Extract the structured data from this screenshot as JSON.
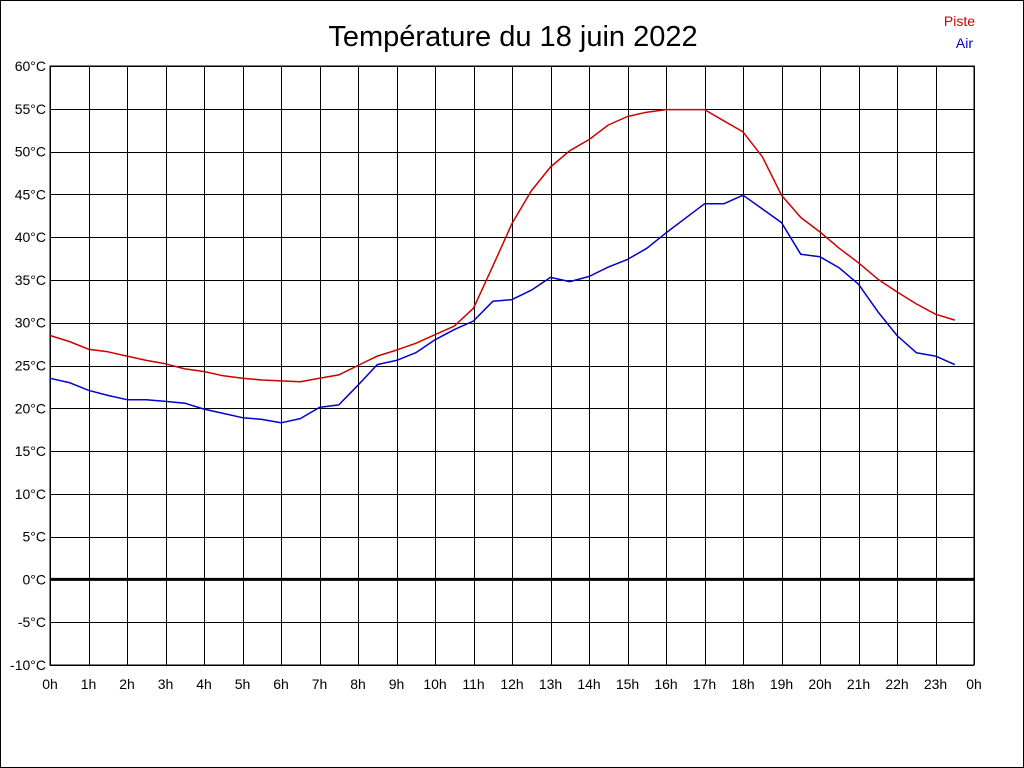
{
  "chart_data": {
    "type": "line",
    "title": "Température du 18 juin 2022",
    "ylim": [
      -10,
      60
    ],
    "y_ticks": [
      "60°C",
      "55°C",
      "50°C",
      "45°C",
      "40°C",
      "35°C",
      "30°C",
      "25°C",
      "20°C",
      "15°C",
      "10°C",
      "5°C",
      "0°C",
      "-5°C",
      "-10°C"
    ],
    "y_tick_values": [
      60,
      55,
      50,
      45,
      40,
      35,
      30,
      25,
      20,
      15,
      10,
      5,
      0,
      -5,
      -10
    ],
    "x_ticks": [
      "0h",
      "1h",
      "2h",
      "3h",
      "4h",
      "5h",
      "6h",
      "7h",
      "8h",
      "9h",
      "10h",
      "11h",
      "12h",
      "13h",
      "14h",
      "15h",
      "16h",
      "17h",
      "18h",
      "19h",
      "20h",
      "21h",
      "22h",
      "23h",
      "0h"
    ],
    "xlim": [
      0,
      24
    ],
    "grid": true,
    "legend_position": "top-right",
    "series": [
      {
        "name": "Piste",
        "color": "#cc0000",
        "x": [
          0,
          0.5,
          1,
          1.5,
          2,
          2.5,
          3,
          3.5,
          4,
          4.5,
          5,
          5.5,
          6,
          6.5,
          7,
          7.5,
          8,
          8.5,
          9,
          9.5,
          10,
          10.5,
          11,
          11.5,
          12,
          12.5,
          13,
          13.5,
          14,
          14.5,
          15,
          15.5,
          16,
          16.5,
          17,
          17.5,
          18,
          18.5,
          19,
          19.5,
          20,
          20.5,
          21,
          21.5,
          22,
          22.5,
          23,
          23.5
        ],
        "values": [
          28.5,
          27.8,
          26.9,
          26.6,
          26.1,
          25.6,
          25.2,
          24.6,
          24.3,
          23.8,
          23.5,
          23.3,
          23.2,
          23.1,
          23.5,
          23.9,
          25.0,
          26.1,
          26.8,
          27.6,
          28.6,
          29.6,
          31.7,
          36.6,
          41.6,
          45.4,
          48.2,
          50.1,
          51.4,
          53.1,
          54.1,
          54.6,
          54.9,
          54.9,
          54.9,
          53.6,
          52.3,
          49.4,
          44.9,
          42.3,
          40.6,
          38.7,
          37.0,
          35.1,
          33.6,
          32.2,
          31.0,
          30.3
        ]
      },
      {
        "name": "Air",
        "color": "#0000cc",
        "x": [
          0,
          0.5,
          1,
          1.5,
          2,
          2.5,
          3,
          3.5,
          4,
          4.5,
          5,
          5.5,
          6,
          6.5,
          7,
          7.5,
          8,
          8.5,
          9,
          9.5,
          10,
          10.5,
          11,
          11.5,
          12,
          12.5,
          13,
          13.5,
          14,
          14.5,
          15,
          15.5,
          16,
          16.5,
          17,
          17.5,
          18,
          18.5,
          19,
          19.5,
          20,
          20.5,
          21,
          21.5,
          22,
          22.5,
          23,
          23.5
        ],
        "values": [
          23.5,
          23.0,
          22.1,
          21.5,
          21.0,
          21.0,
          20.8,
          20.6,
          19.9,
          19.4,
          18.9,
          18.7,
          18.3,
          18.8,
          20.1,
          20.4,
          22.7,
          25.1,
          25.6,
          26.5,
          28.0,
          29.2,
          30.2,
          32.5,
          32.7,
          33.8,
          35.3,
          34.8,
          35.4,
          36.5,
          37.4,
          38.7,
          40.5,
          42.2,
          43.9,
          43.9,
          44.9,
          43.3,
          41.7,
          38.0,
          37.7,
          36.4,
          34.5,
          31.3,
          28.5,
          26.5,
          26.1,
          25.1
        ]
      }
    ]
  }
}
